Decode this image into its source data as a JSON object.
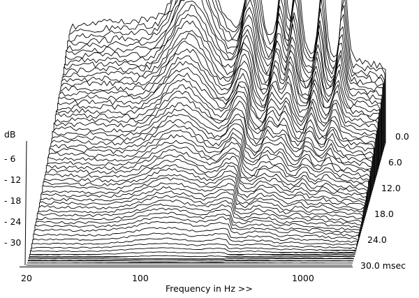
{
  "chart_data": {
    "type": "waterfall",
    "title": "",
    "xlabel": "Frequency in Hz >>",
    "ylabel": "dB",
    "zlabel_suffix": "msec",
    "x_scale": "log",
    "xlim": [
      20,
      2000
    ],
    "x_ticks": [
      {
        "value": 20,
        "label": "20"
      },
      {
        "value": 100,
        "label": "100"
      },
      {
        "value": 1000,
        "label": "1000"
      }
    ],
    "y_ticks": [
      {
        "value": -6,
        "label": "- 6"
      },
      {
        "value": -12,
        "label": "- 12"
      },
      {
        "value": -18,
        "label": "- 18"
      },
      {
        "value": -24,
        "label": "- 24"
      },
      {
        "value": -30,
        "label": "- 30"
      }
    ],
    "z_ticks": [
      {
        "value": 0.0,
        "label": "0.0"
      },
      {
        "value": 6.0,
        "label": "6.0"
      },
      {
        "value": 12.0,
        "label": "12.0"
      },
      {
        "value": 18.0,
        "label": "18.0"
      },
      {
        "value": 24.0,
        "label": "24.0"
      },
      {
        "value": 30.0,
        "label": "30.0 msec"
      }
    ],
    "zlim": [
      0,
      30
    ],
    "slice_count": 58,
    "grid": false,
    "legend": "none"
  }
}
